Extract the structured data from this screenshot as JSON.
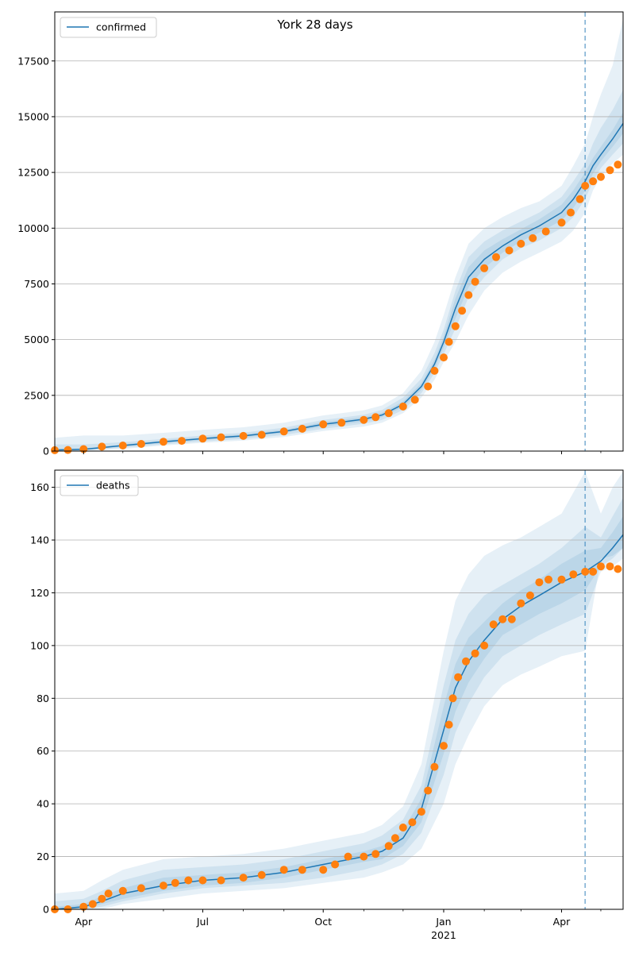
{
  "title": "York 28 days",
  "colors": {
    "model_line": "#1f77b4",
    "band_fill": "#1f77b4",
    "observed": "#ff7f0e",
    "grid": "#b0b0b0",
    "forecast_divider": "#1f77b4"
  },
  "x_ticks": {
    "major": [
      {
        "date": "2020-04-01",
        "label": "Apr"
      },
      {
        "date": "2020-07-01",
        "label": "Jul"
      },
      {
        "date": "2020-10-01",
        "label": "Oct"
      },
      {
        "date": "2021-01-01",
        "label": "Jan"
      },
      {
        "date": "2021-04-01",
        "label": "Apr"
      }
    ],
    "year_label": {
      "date": "2021-01-01",
      "label": "2021"
    },
    "minor": [
      "2020-05-01",
      "2020-06-01",
      "2020-08-01",
      "2020-09-01",
      "2020-11-01",
      "2020-12-01",
      "2021-02-01",
      "2021-03-01",
      "2021-05-01"
    ]
  },
  "forecast_start": "2021-04-19",
  "chart_data": [
    {
      "type": "line",
      "legend": "confirmed",
      "legend_position": "upper left",
      "grid": "horizontal",
      "xlim": [
        "2020-03-10",
        "2021-05-18"
      ],
      "ylim": [
        0,
        19700
      ],
      "yticks": [
        0,
        2500,
        5000,
        7500,
        10000,
        12500,
        15000,
        17500
      ],
      "model": {
        "x": [
          "2020-03-10",
          "2020-04-01",
          "2020-05-01",
          "2020-06-01",
          "2020-07-01",
          "2020-08-01",
          "2020-09-01",
          "2020-10-01",
          "2020-10-15",
          "2020-11-01",
          "2020-11-15",
          "2020-12-01",
          "2020-12-15",
          "2020-12-25",
          "2021-01-01",
          "2021-01-10",
          "2021-01-20",
          "2021-02-01",
          "2021-02-15",
          "2021-03-01",
          "2021-03-15",
          "2021-04-01",
          "2021-04-10",
          "2021-04-19",
          "2021-04-25",
          "2021-05-01",
          "2021-05-10",
          "2021-05-18"
        ],
        "y": [
          50,
          80,
          250,
          420,
          560,
          680,
          880,
          1200,
          1300,
          1430,
          1620,
          2100,
          2900,
          3900,
          4900,
          6400,
          7800,
          8600,
          9200,
          9700,
          10100,
          10700,
          11300,
          12100,
          12800,
          13300,
          14000,
          14700
        ],
        "bands": [
          {
            "lower": [
              0,
              0,
              100,
              250,
              370,
              470,
              630,
              900,
              990,
              1100,
              1270,
              1700,
              2400,
              3200,
              4000,
              4900,
              6100,
              7200,
              8000,
              8500,
              8900,
              9400,
              9900,
              10700,
              11700,
              12300,
              12900,
              13300
            ],
            "upper": [
              600,
              700,
              700,
              820,
              950,
              1070,
              1270,
              1600,
              1700,
              1830,
              2050,
              2600,
              3600,
              4900,
              6100,
              7800,
              9300,
              10000,
              10500,
              10900,
              11200,
              11900,
              12800,
              13800,
              15000,
              16000,
              17300,
              19400
            ]
          },
          {
            "lower": [
              0,
              20,
              150,
              300,
              430,
              540,
              720,
              1000,
              1100,
              1230,
              1400,
              1850,
              2600,
              3500,
              4350,
              5500,
              6900,
              7800,
              8600,
              9100,
              9450,
              10000,
              10500,
              11300,
              12100,
              12700,
              13300,
              13800
            ],
            "upper": [
              300,
              300,
              400,
              550,
              700,
              830,
              1050,
              1400,
              1500,
              1630,
              1850,
              2400,
              3250,
              4400,
              5450,
              7200,
              8700,
              9400,
              9900,
              10300,
              10700,
              11400,
              12100,
              12900,
              13800,
              14500,
              15300,
              16200
            ]
          },
          {
            "lower": [
              20,
              50,
              200,
              360,
              500,
              610,
              810,
              1100,
              1200,
              1330,
              1520,
              1980,
              2750,
              3700,
              4650,
              5950,
              7350,
              8200,
              8900,
              9400,
              9800,
              10350,
              10900,
              11700,
              12450,
              13000,
              13650,
              14250
            ],
            "upper": [
              100,
              120,
              300,
              480,
              620,
              750,
              950,
              1300,
              1400,
              1530,
              1720,
              2230,
              3050,
              4100,
              5150,
              6850,
              8250,
              9000,
              9500,
              9950,
              10400,
              11050,
              11700,
              12500,
              13150,
              13650,
              14400,
              15200
            ]
          }
        ]
      },
      "observed": {
        "x": [
          "2020-03-10",
          "2020-03-20",
          "2020-04-01",
          "2020-04-15",
          "2020-05-01",
          "2020-05-15",
          "2020-06-01",
          "2020-06-15",
          "2020-07-01",
          "2020-07-15",
          "2020-08-01",
          "2020-08-15",
          "2020-09-01",
          "2020-09-15",
          "2020-10-01",
          "2020-10-15",
          "2020-11-01",
          "2020-11-10",
          "2020-11-20",
          "2020-12-01",
          "2020-12-10",
          "2020-12-20",
          "2020-12-25",
          "2021-01-01",
          "2021-01-05",
          "2021-01-10",
          "2021-01-15",
          "2021-01-20",
          "2021-01-25",
          "2021-02-01",
          "2021-02-10",
          "2021-02-20",
          "2021-03-01",
          "2021-03-10",
          "2021-03-20",
          "2021-04-01",
          "2021-04-08",
          "2021-04-15",
          "2021-04-19",
          "2021-04-25",
          "2021-05-01",
          "2021-05-08",
          "2021-05-14"
        ],
        "y": [
          40,
          50,
          90,
          200,
          250,
          320,
          420,
          460,
          560,
          620,
          680,
          730,
          880,
          1000,
          1200,
          1270,
          1400,
          1520,
          1700,
          2000,
          2300,
          2900,
          3600,
          4200,
          4900,
          5600,
          6300,
          7000,
          7600,
          8200,
          8700,
          9000,
          9300,
          9550,
          9850,
          10250,
          10700,
          11300,
          11900,
          12100,
          12300,
          12600,
          12850
        ]
      }
    },
    {
      "type": "line",
      "legend": "deaths",
      "legend_position": "upper left",
      "grid": "horizontal",
      "xlim": [
        "2020-03-10",
        "2021-05-18"
      ],
      "ylim": [
        0,
        166.5
      ],
      "yticks": [
        0,
        20,
        40,
        60,
        80,
        100,
        120,
        140,
        160
      ],
      "model": {
        "x": [
          "2020-03-10",
          "2020-04-01",
          "2020-04-15",
          "2020-05-01",
          "2020-06-01",
          "2020-07-01",
          "2020-08-01",
          "2020-09-01",
          "2020-10-01",
          "2020-11-01",
          "2020-11-15",
          "2020-12-01",
          "2020-12-15",
          "2021-01-01",
          "2021-01-10",
          "2021-01-20",
          "2021-02-01",
          "2021-02-15",
          "2021-03-01",
          "2021-03-15",
          "2021-04-01",
          "2021-04-19",
          "2021-05-01",
          "2021-05-10",
          "2021-05-18"
        ],
        "y": [
          0,
          1,
          3,
          6,
          9,
          11,
          12,
          14,
          17,
          20,
          22,
          27,
          38,
          68,
          84,
          94,
          102,
          110,
          115,
          119,
          124,
          128,
          132,
          137,
          142
        ],
        "bands": [
          {
            "lower": [
              0,
              0,
              0,
              2,
              4,
              6,
              7,
              8,
              10,
              12,
              14,
              17,
              23,
              40,
              55,
              66,
              77,
              85,
              89,
              92,
              96,
              98,
              133,
              134,
              137
            ],
            "upper": [
              6,
              7,
              11,
              15,
              19,
              20,
              21,
              23,
              26,
              29,
              32,
              39,
              55,
              98,
              117,
              127,
              134,
              138,
              141,
              145,
              150,
              166,
              150,
              160,
              166
            ]
          },
          {
            "lower": [
              0,
              0,
              1,
              3,
              6,
              8,
              9,
              10,
              12,
              15,
              17,
              21,
              29,
              51,
              67,
              78,
              88,
              96,
              100,
              104,
              108,
              112,
              128,
              130,
              133
            ],
            "upper": [
              3,
              4,
              7,
              11,
              15,
              16,
              17,
              19,
              22,
              25,
              28,
              34,
              47,
              85,
              102,
              112,
              119,
              123,
              127,
              131,
              137,
              145,
              141,
              149,
              156
            ]
          },
          {
            "lower": [
              0,
              0,
              2,
              4,
              7,
              9,
              10,
              12,
              15,
              18,
              19,
              24,
              33,
              59,
              75,
              86,
              95,
              104,
              108,
              112,
              116,
              121,
              130,
              133,
              137
            ],
            "upper": [
              1,
              2,
              5,
              8,
              12,
              13,
              14,
              16,
              19,
              22,
              24,
              30,
              42,
              77,
              93,
              103,
              109,
              116,
              121,
              125,
              131,
              136,
              137,
              143,
              149
            ]
          }
        ]
      },
      "observed": {
        "x": [
          "2020-03-10",
          "2020-03-20",
          "2020-04-01",
          "2020-04-08",
          "2020-04-15",
          "2020-04-20",
          "2020-05-01",
          "2020-05-15",
          "2020-06-01",
          "2020-06-10",
          "2020-06-20",
          "2020-07-01",
          "2020-07-15",
          "2020-08-01",
          "2020-08-15",
          "2020-09-01",
          "2020-09-15",
          "2020-10-01",
          "2020-10-10",
          "2020-10-20",
          "2020-11-01",
          "2020-11-10",
          "2020-11-20",
          "2020-11-25",
          "2020-12-01",
          "2020-12-08",
          "2020-12-15",
          "2020-12-20",
          "2020-12-25",
          "2021-01-01",
          "2021-01-05",
          "2021-01-08",
          "2021-01-12",
          "2021-01-18",
          "2021-01-25",
          "2021-02-01",
          "2021-02-08",
          "2021-02-15",
          "2021-02-22",
          "2021-03-01",
          "2021-03-08",
          "2021-03-15",
          "2021-03-22",
          "2021-04-01",
          "2021-04-10",
          "2021-04-19",
          "2021-04-25",
          "2021-05-01",
          "2021-05-08",
          "2021-05-14"
        ],
        "y": [
          0,
          0,
          1,
          2,
          4,
          6,
          7,
          8,
          9,
          10,
          11,
          11,
          11,
          12,
          13,
          15,
          15,
          15,
          17,
          20,
          20,
          21,
          24,
          27,
          31,
          33,
          37,
          45,
          54,
          62,
          70,
          80,
          88,
          94,
          97,
          100,
          108,
          110,
          110,
          116,
          119,
          124,
          125,
          125,
          127,
          128,
          128,
          130,
          130,
          129
        ]
      }
    }
  ]
}
